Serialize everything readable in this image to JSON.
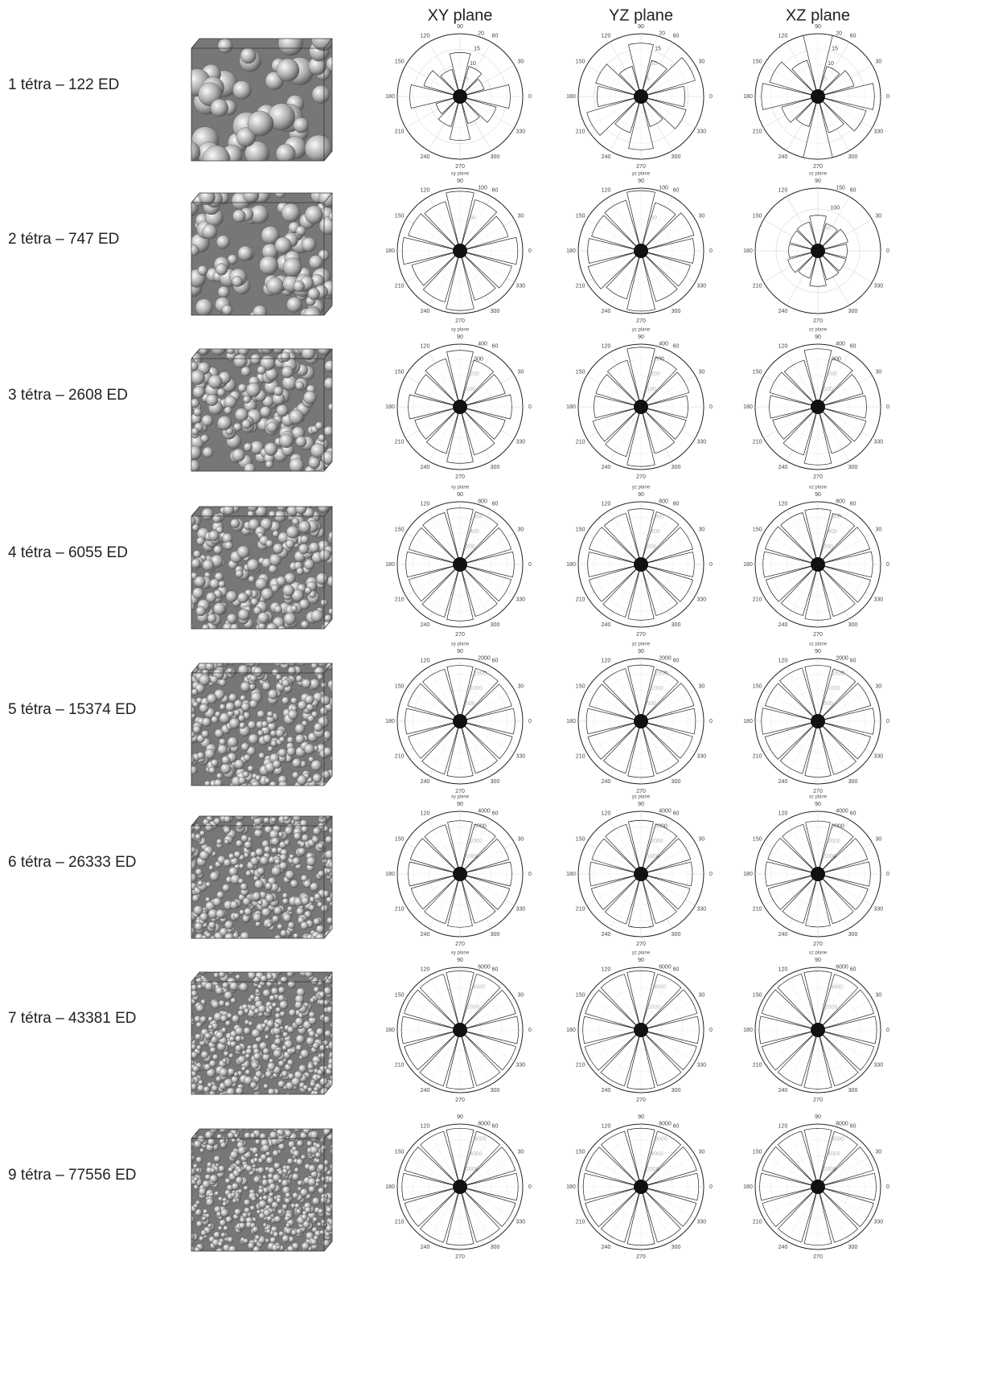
{
  "columns": [
    "XY plane",
    "YZ plane",
    "XZ plane"
  ],
  "angle_labels": [
    0,
    30,
    60,
    90,
    120,
    150,
    180,
    210,
    240,
    270,
    300,
    330
  ],
  "rows": [
    {
      "label": "1 tétra – 122 ED",
      "plots": [
        {
          "rticks": [
            5,
            10,
            15,
            20
          ],
          "values": [
            16,
            8,
            10,
            14,
            9,
            12,
            16,
            8,
            10,
            14,
            9,
            12
          ]
        },
        {
          "rticks": [
            5,
            10,
            15,
            20
          ],
          "values": [
            14,
            18,
            12,
            17,
            10,
            15,
            14,
            18,
            12,
            17,
            10,
            15
          ]
        },
        {
          "rticks": [
            5,
            10,
            15,
            20
          ],
          "values": [
            18,
            12,
            10,
            20,
            12,
            16,
            18,
            12,
            10,
            20,
            12,
            16
          ]
        }
      ]
    },
    {
      "label": "2 tétra – 747 ED",
      "plots": [
        {
          "title": "xy plane",
          "rticks": [
            50,
            100
          ],
          "values": [
            92,
            80,
            85,
            95,
            82,
            86,
            92,
            80,
            85,
            95,
            82,
            86
          ]
        },
        {
          "title": "yz plane",
          "rticks": [
            50,
            100
          ],
          "values": [
            85,
            88,
            80,
            96,
            84,
            82,
            85,
            88,
            80,
            96,
            84,
            82
          ]
        },
        {
          "title": "xz plane",
          "rticks": [
            50,
            100,
            150
          ],
          "values": [
            70,
            75,
            68,
            85,
            72,
            70,
            70,
            75,
            68,
            85,
            72,
            70
          ]
        }
      ]
    },
    {
      "label": "3 tétra – 2608 ED",
      "plots": [
        {
          "title": "xy plane",
          "rticks": [
            100,
            200,
            300,
            400
          ],
          "values": [
            330,
            300,
            310,
            360,
            320,
            300,
            330,
            300,
            310,
            360,
            320,
            300
          ]
        },
        {
          "title": "yz plane",
          "rticks": [
            100,
            200,
            300,
            400
          ],
          "values": [
            300,
            320,
            330,
            380,
            310,
            300,
            300,
            320,
            330,
            380,
            310,
            300
          ]
        },
        {
          "title": "xz plane",
          "rticks": [
            100,
            200,
            300,
            400
          ],
          "values": [
            310,
            300,
            320,
            370,
            310,
            320,
            310,
            300,
            320,
            370,
            310,
            320
          ]
        }
      ]
    },
    {
      "label": "4 tétra – 6055 ED",
      "plots": [
        {
          "title": "xy plane",
          "rticks": [
            200,
            400,
            600,
            800
          ],
          "values": [
            690,
            680,
            700,
            720,
            690,
            680,
            690,
            680,
            700,
            720,
            690,
            680
          ]
        },
        {
          "title": "yz plane",
          "rticks": [
            200,
            400,
            600,
            800
          ],
          "values": [
            680,
            690,
            700,
            710,
            680,
            690,
            680,
            690,
            700,
            710,
            680,
            690
          ]
        },
        {
          "title": "xz plane",
          "rticks": [
            200,
            400,
            600,
            800
          ],
          "values": [
            700,
            690,
            680,
            710,
            690,
            700,
            700,
            690,
            680,
            710,
            690,
            700
          ]
        }
      ]
    },
    {
      "label": "5 tétra – 15374 ED",
      "plots": [
        {
          "title": "xy plane",
          "rticks": [
            500,
            1000,
            1500,
            2000
          ],
          "values": [
            1750,
            1720,
            1760,
            1780,
            1730,
            1740,
            1750,
            1720,
            1760,
            1780,
            1730,
            1740
          ]
        },
        {
          "title": "yz plane",
          "rticks": [
            500,
            1000,
            1500,
            2000
          ],
          "values": [
            1740,
            1760,
            1730,
            1790,
            1750,
            1720,
            1740,
            1760,
            1730,
            1790,
            1750,
            1720
          ]
        },
        {
          "title": "xz plane",
          "rticks": [
            500,
            1000,
            1500,
            2000
          ],
          "values": [
            1800,
            1760,
            1740,
            1780,
            1770,
            1750,
            1800,
            1760,
            1740,
            1780,
            1770,
            1750
          ]
        }
      ]
    },
    {
      "label": "6 tétra – 26333 ED",
      "plots": [
        {
          "title": "xy plane",
          "rticks": [
            1000,
            2000,
            3000,
            4000
          ],
          "values": [
            3300,
            3250,
            3300,
            3400,
            3280,
            3300,
            3300,
            3250,
            3300,
            3400,
            3280,
            3300
          ]
        },
        {
          "title": "yz plane",
          "rticks": [
            1000,
            2000,
            3000,
            4000
          ],
          "values": [
            3280,
            3300,
            3320,
            3420,
            3300,
            3260,
            3280,
            3300,
            3320,
            3420,
            3300,
            3260
          ]
        },
        {
          "title": "xz plane",
          "rticks": [
            1000,
            2000,
            3000,
            4000
          ],
          "values": [
            3350,
            3300,
            3280,
            3380,
            3300,
            3320,
            3350,
            3300,
            3280,
            3380,
            3300,
            3320
          ]
        }
      ]
    },
    {
      "label": "7 tétra – 43381 ED",
      "plots": [
        {
          "title": "xy plane",
          "rticks": [
            2000,
            4000,
            6000
          ],
          "values": [
            5600,
            5550,
            5580,
            5650,
            5560,
            5570,
            5600,
            5550,
            5580,
            5650,
            5560,
            5570
          ]
        },
        {
          "title": "yz plane",
          "rticks": [
            2000,
            4000,
            6000
          ],
          "values": [
            5560,
            5600,
            5580,
            5660,
            5570,
            5550,
            5560,
            5600,
            5580,
            5660,
            5570,
            5550
          ]
        },
        {
          "title": "xz plane",
          "rticks": [
            2000,
            4000,
            6000
          ],
          "values": [
            5620,
            5580,
            5560,
            5640,
            5590,
            5600,
            5620,
            5580,
            5560,
            5640,
            5590,
            5600
          ]
        }
      ]
    },
    {
      "label": "9 tétra – 77556 ED",
      "plots": [
        {
          "rticks": [
            2000,
            4000,
            6000,
            8000
          ],
          "values": [
            7400,
            7350,
            7380,
            7450,
            7360,
            7370,
            7400,
            7350,
            7380,
            7450,
            7360,
            7370
          ]
        },
        {
          "rticks": [
            2000,
            4000,
            6000,
            8000
          ],
          "values": [
            7360,
            7400,
            7380,
            7460,
            7370,
            7350,
            7360,
            7400,
            7380,
            7460,
            7370,
            7350
          ]
        },
        {
          "rticks": [
            2000,
            4000,
            6000,
            8000
          ],
          "values": [
            7420,
            7380,
            7360,
            7440,
            7390,
            7400,
            7420,
            7380,
            7360,
            7440,
            7390,
            7400
          ]
        }
      ]
    }
  ]
}
